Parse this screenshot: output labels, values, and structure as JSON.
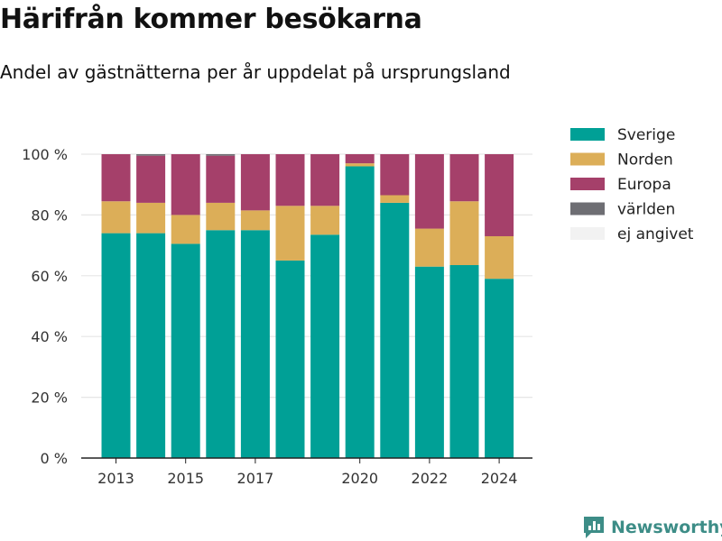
{
  "page": {
    "title": "Härifrån kommer besökarna",
    "subtitle": "Andel av gästnätterna per år uppdelat på ursprungsland"
  },
  "brand": {
    "name": "Newsworthy",
    "logo_icon": "newsworthy-logo-icon",
    "color": "#3d8d87"
  },
  "chart_data": {
    "type": "bar",
    "stacked": true,
    "categories": [
      "2013",
      "2014",
      "2015",
      "2016",
      "2017",
      "2018",
      "2019",
      "2020",
      "2021",
      "2022",
      "2023",
      "2024"
    ],
    "series": [
      {
        "name": "Sverige",
        "color": "#00a096",
        "values": [
          74,
          74,
          70.5,
          75,
          75,
          65,
          73.5,
          96,
          84,
          63,
          63.5,
          59
        ]
      },
      {
        "name": "Norden",
        "color": "#dcae58",
        "values": [
          10.5,
          10,
          9.5,
          9,
          6.5,
          18,
          9.5,
          1,
          2.5,
          12.5,
          21,
          14
        ]
      },
      {
        "name": "Europa",
        "color": "#a5406a",
        "values": [
          15.5,
          15.5,
          20,
          15.5,
          18.5,
          17,
          17,
          3,
          13.5,
          24.5,
          15.5,
          27
        ]
      },
      {
        "name": "världen",
        "color": "#6e6e73",
        "values": [
          0,
          0.5,
          0,
          0.5,
          0,
          0,
          0,
          0,
          0,
          0,
          0,
          0
        ]
      },
      {
        "name": "ej angivet",
        "color": "#f2f2f2",
        "values": [
          0,
          0,
          0,
          0,
          0,
          0,
          0,
          0,
          0,
          0,
          0,
          0
        ]
      }
    ],
    "yticks": [
      "0 %",
      "20 %",
      "40 %",
      "60 %",
      "80 %",
      "100 %"
    ],
    "xticks": [
      "2013",
      "2015",
      "2017",
      "2020",
      "2022",
      "2024"
    ],
    "ylim": [
      0,
      100
    ],
    "grid": true,
    "legend_position": "right"
  }
}
